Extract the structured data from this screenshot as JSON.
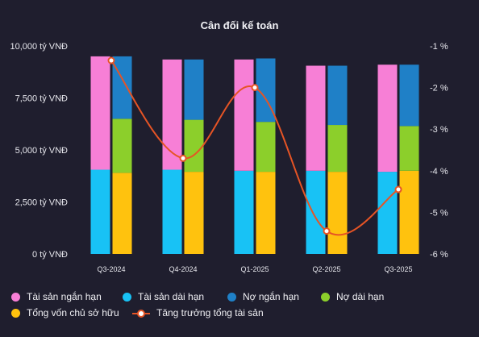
{
  "chart_data": {
    "type": "bar",
    "title": "Cân đối kế toán",
    "categories": [
      "Q3-2024",
      "Q4-2024",
      "Q1-2025",
      "Q2-2025",
      "Q3-2025"
    ],
    "left_axis": {
      "ticks": [
        "0 tỷ VNĐ",
        "2,500 tỷ VNĐ",
        "5,000 tỷ VNĐ",
        "7,500 tỷ VNĐ",
        "10,000 tỷ VNĐ"
      ],
      "range": [
        0,
        10000
      ]
    },
    "right_axis": {
      "ticks": [
        "-6 %",
        "-5 %",
        "-4 %",
        "-3 %",
        "-2 %",
        "-1 %"
      ],
      "range": [
        -6,
        -1
      ]
    },
    "stacks": [
      {
        "stack": "assets",
        "series": [
          {
            "name": "Tài sản dài hạn",
            "color": "#18c2f5",
            "values": [
              4050,
              4050,
              4000,
              4000,
              3950
            ]
          },
          {
            "name": "Tài sản ngắn hạn",
            "color": "#f77fd6",
            "values": [
              5450,
              5300,
              5350,
              5050,
              5150
            ]
          }
        ]
      },
      {
        "stack": "liabilities_equity",
        "series": [
          {
            "name": "Tổng vốn chủ sở hữu",
            "color": "#ffc20e",
            "values": [
              3900,
              3950,
              3950,
              3950,
              4000
            ]
          },
          {
            "name": "Nợ dài hạn",
            "color": "#8ccf2b",
            "values": [
              2600,
              2500,
              2400,
              2250,
              2150
            ]
          },
          {
            "name": "Nợ ngắn hạn",
            "color": "#1f80c7",
            "values": [
              3000,
              2900,
              3050,
              2850,
              2950
            ]
          }
        ]
      }
    ],
    "line": {
      "name": "Tăng trưởng tổng tài sản",
      "color": "#e65425",
      "axis": "right",
      "values": [
        -1.35,
        -3.7,
        -2.0,
        -5.45,
        -4.45
      ]
    },
    "legend": [
      {
        "label": "Tài sản ngắn hạn",
        "color": "#f77fd6",
        "kind": "dot"
      },
      {
        "label": "Tài sản dài hạn",
        "color": "#18c2f5",
        "kind": "dot"
      },
      {
        "label": "Nợ ngắn hạn",
        "color": "#1f80c7",
        "kind": "dot"
      },
      {
        "label": "Nợ dài hạn",
        "color": "#8ccf2b",
        "kind": "dot"
      },
      {
        "label": "Tổng vốn chủ sở hữu",
        "color": "#ffc20e",
        "kind": "dot"
      },
      {
        "label": "Tăng trưởng tổng tài sản",
        "color": "#e65425",
        "kind": "line"
      }
    ],
    "legend_placement": "bottom",
    "grid": false
  }
}
